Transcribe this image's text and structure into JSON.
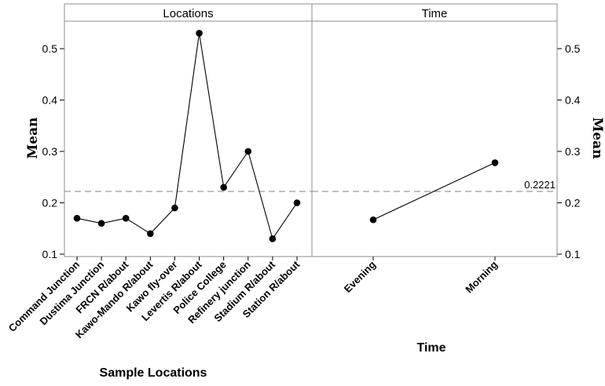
{
  "chart_data": {
    "type": "line",
    "y_label": "Mean",
    "y_ticks": [
      0.1,
      0.2,
      0.3,
      0.4,
      0.5
    ],
    "ylim": [
      0.09,
      0.55
    ],
    "reference_line": {
      "value": 0.2221,
      "label": "0.2221",
      "style": "dashed"
    },
    "panels": [
      {
        "id": "locations",
        "strip_title": "Locations",
        "x_title": "Sample Locations",
        "categories": [
          "Command Junction",
          "Dustima Junction",
          "FRCN R/about",
          "Kawo-Mando R/about",
          "Kawo fly-over",
          "Levertis R/about",
          "Police College",
          "Refinery junction",
          "Stadium R/about",
          "Station R/about"
        ],
        "values": [
          0.17,
          0.16,
          0.17,
          0.14,
          0.19,
          0.53,
          0.23,
          0.3,
          0.13,
          0.2
        ]
      },
      {
        "id": "time",
        "strip_title": "Time",
        "x_title": "Time",
        "categories": [
          "Evening",
          "Morning"
        ],
        "values": [
          0.167,
          0.278
        ]
      }
    ]
  }
}
